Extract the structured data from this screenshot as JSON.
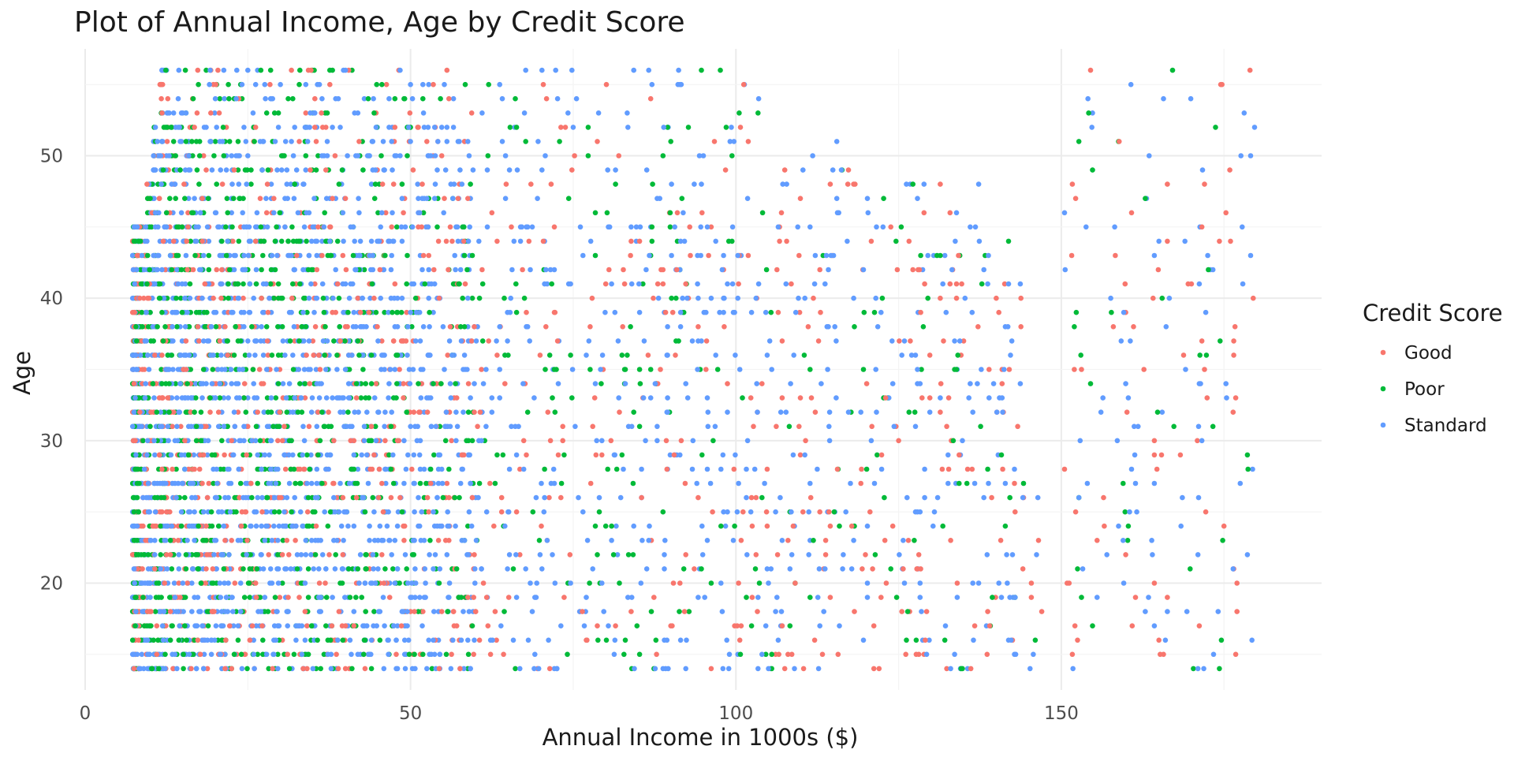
{
  "chart_data": {
    "type": "scatter",
    "title": "Plot of Annual Income, Age by Credit Score",
    "xlabel": "Annual Income in 1000s ($)",
    "ylabel": "Age",
    "xlim": [
      0,
      190
    ],
    "ylim": [
      12.5,
      57.5
    ],
    "x_ticks": [
      0,
      50,
      100,
      150
    ],
    "y_ticks": [
      20,
      30,
      40,
      50
    ],
    "grid": true,
    "legend": {
      "title": "Credit Score",
      "placement": "right"
    },
    "series": [
      {
        "name": "Good",
        "color": "#F8766D",
        "x": [],
        "y": []
      },
      {
        "name": "Poor",
        "color": "#00BA38",
        "x": [],
        "y": []
      },
      {
        "name": "Standard",
        "color": "#619CFF",
        "x": [],
        "y": []
      }
    ],
    "draw_order": []
  }
}
